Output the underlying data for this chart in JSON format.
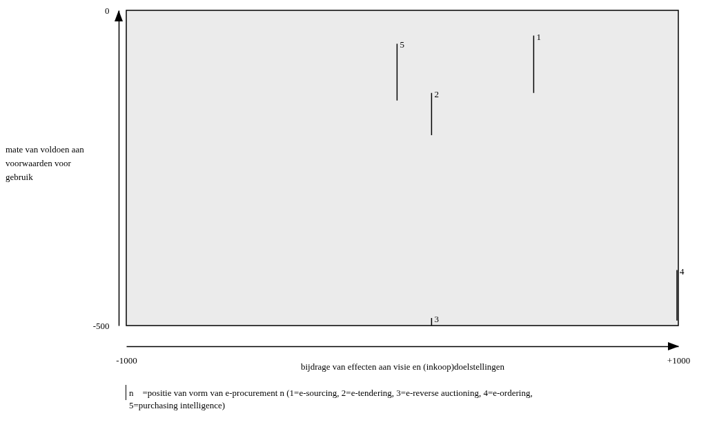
{
  "chart_data": {
    "type": "line",
    "xlabel": "bijdrage van effecten aan visie en (inkoop)doelstellingen",
    "ylabel": "mate van voldoen aan voorwaarden voor gebruik",
    "series": [
      {
        "name": "1",
        "color": "#000000",
        "x": [
          476,
          476
        ],
        "values": [
          -131,
          -40
        ]
      },
      {
        "name": "2",
        "color": "#000000",
        "x": [
          106,
          106
        ],
        "values": [
          -198,
          -131
        ]
      },
      {
        "name": "3",
        "color": "#000000",
        "x": [
          106,
          106
        ],
        "values": [
          -500,
          -488
        ]
      },
      {
        "name": "4",
        "color": "#000000",
        "x": [
          995,
          995
        ],
        "values": [
          -492,
          -412
        ]
      },
      {
        "name": "5",
        "color": "#000000",
        "x": [
          -19,
          -19
        ],
        "values": [
          -143,
          -53
        ]
      }
    ],
    "xlim": [
      -1000,
      1000
    ],
    "xticks": [
      {
        "value": -1000,
        "label": "-1000"
      },
      {
        "value": 1000,
        "label": "+1000"
      }
    ],
    "ylim": [
      -500,
      0
    ],
    "yticks": [
      {
        "value": -500,
        "label": "-500"
      },
      0
    ],
    "grid": false,
    "legend": false,
    "marker": "none",
    "line_style": "solid",
    "annotations": [
      "n =positie van vorm van e-procurement n (1=e-sourcing, 2=e-tendering, 3=e-reverse auctioning, 4=e-ordering, 5=purchasing intelligence)"
    ]
  }
}
